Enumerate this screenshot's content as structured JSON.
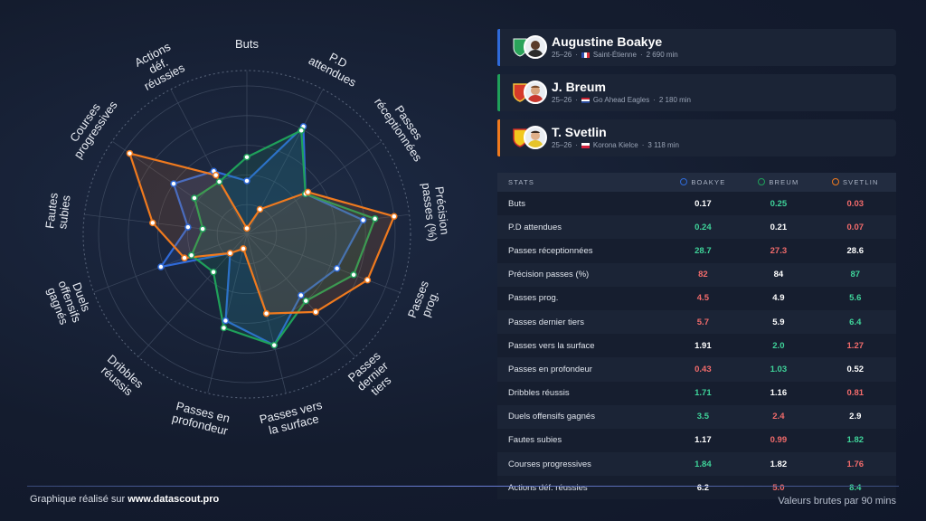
{
  "chart_data": {
    "type": "radar",
    "axes": [
      "Buts",
      "P.D attendues",
      "Passes réceptionnées",
      "Précision passes (%)",
      "Passes prog.",
      "Passes dernier tiers",
      "Passes vers la surface",
      "Passes en profondeur",
      "Dribbles réussis",
      "Duels offensifs gagnés",
      "Fautes subies",
      "Courses progressives",
      "Actions déf. réussies"
    ],
    "axis_labels": [
      [
        "Buts"
      ],
      [
        "P.D",
        "attendues"
      ],
      [
        "Passes",
        "réceptionnées"
      ],
      [
        "Précision",
        "passes (%)"
      ],
      [
        "Passes",
        "prog."
      ],
      [
        "Passes",
        "dernier",
        "tiers"
      ],
      [
        "Passes vers",
        "la surface"
      ],
      [
        "Passes en",
        "profondeur"
      ],
      [
        "Dribbles",
        "réussis"
      ],
      [
        "Duels",
        "offensifs",
        "gagnés"
      ],
      [
        "Fautes",
        "subies"
      ],
      [
        "Courses",
        "progressives"
      ],
      [
        "Actions",
        "déf.",
        "réussies"
      ]
    ],
    "rings": 5,
    "series": [
      {
        "name": "Boakye",
        "color": "#2f6ad9",
        "r": [
          0.36,
          0.82,
          0.48,
          0.79,
          0.65,
          0.55,
          0.77,
          0.6,
          0.17,
          0.62,
          0.4,
          0.6,
          0.48
        ]
      },
      {
        "name": "Breum",
        "color": "#1fa05a",
        "r": [
          0.52,
          0.79,
          0.48,
          0.87,
          0.77,
          0.6,
          0.77,
          0.65,
          0.34,
          0.4,
          0.3,
          0.43,
          0.4
        ]
      },
      {
        "name": "Svetlin",
        "color": "#f07a1e",
        "r": [
          0.04,
          0.19,
          0.5,
          1.0,
          0.87,
          0.7,
          0.55,
          0.1,
          0.17,
          0.45,
          0.64,
          0.96,
          0.45
        ]
      }
    ]
  },
  "players": [
    {
      "name": "Augustine Boakye",
      "season": "25–26",
      "club": "Saint-Étienne",
      "minutes": "2 690 min",
      "color": "#2f6ad9"
    },
    {
      "name": "J. Breum",
      "season": "25–26",
      "club": "Go Ahead Eagles",
      "minutes": "2 180 min",
      "color": "#1fa05a"
    },
    {
      "name": "T. Svetlin",
      "season": "25–26",
      "club": "Korona Kielce",
      "minutes": "3 118 min",
      "color": "#f07a1e"
    }
  ],
  "table": {
    "header": {
      "stats": "STATS",
      "p1": "BOAKYE",
      "p2": "BREUM",
      "p3": "SVETLIN"
    },
    "rows": [
      {
        "label": "Buts",
        "v": [
          "0.17",
          "0.25",
          "0.03"
        ],
        "c": [
          "mid",
          "good",
          "bad"
        ]
      },
      {
        "label": "P.D attendues",
        "v": [
          "0.24",
          "0.21",
          "0.07"
        ],
        "c": [
          "good",
          "mid",
          "bad"
        ]
      },
      {
        "label": "Passes réceptionnées",
        "v": [
          "28.7",
          "27.3",
          "28.6"
        ],
        "c": [
          "good",
          "bad",
          "mid"
        ]
      },
      {
        "label": "Précision passes (%)",
        "v": [
          "82",
          "84",
          "87"
        ],
        "c": [
          "bad",
          "mid",
          "good"
        ]
      },
      {
        "label": "Passes prog.",
        "v": [
          "4.5",
          "4.9",
          "5.6"
        ],
        "c": [
          "bad",
          "mid",
          "good"
        ]
      },
      {
        "label": "Passes dernier tiers",
        "v": [
          "5.7",
          "5.9",
          "6.4"
        ],
        "c": [
          "bad",
          "mid",
          "good"
        ]
      },
      {
        "label": "Passes vers la surface",
        "v": [
          "1.91",
          "2.0",
          "1.27"
        ],
        "c": [
          "mid",
          "good",
          "bad"
        ]
      },
      {
        "label": "Passes en profondeur",
        "v": [
          "0.43",
          "1.03",
          "0.52"
        ],
        "c": [
          "bad",
          "good",
          "mid"
        ]
      },
      {
        "label": "Dribbles réussis",
        "v": [
          "1.71",
          "1.16",
          "0.81"
        ],
        "c": [
          "good",
          "mid",
          "bad"
        ]
      },
      {
        "label": "Duels offensifs gagnés",
        "v": [
          "3.5",
          "2.4",
          "2.9"
        ],
        "c": [
          "good",
          "bad",
          "mid"
        ]
      },
      {
        "label": "Fautes subies",
        "v": [
          "1.17",
          "0.99",
          "1.82"
        ],
        "c": [
          "mid",
          "bad",
          "good"
        ]
      },
      {
        "label": "Courses progressives",
        "v": [
          "1.84",
          "1.82",
          "1.76"
        ],
        "c": [
          "good",
          "mid",
          "bad"
        ]
      },
      {
        "label": "Actions déf. réussies",
        "v": [
          "6.2",
          "5.0",
          "8.4"
        ],
        "c": [
          "mid",
          "bad",
          "good"
        ]
      }
    ]
  },
  "footer": {
    "left_prefix": "Graphique réalisé sur ",
    "left_site": "www.datascout.pro",
    "right": "Valeurs brutes par 90 mins"
  }
}
